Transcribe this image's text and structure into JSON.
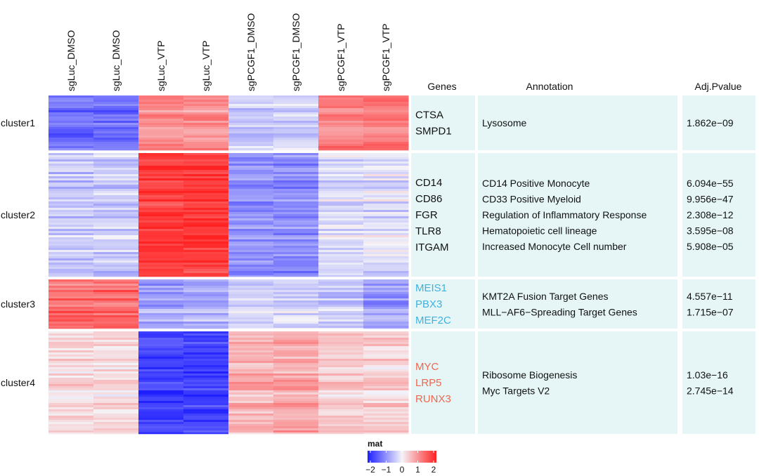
{
  "chart_data": {
    "type": "heatmap",
    "columns": [
      "sgLuc_DMSO",
      "sgLuc_DMSO",
      "sgLuc_VTP",
      "sgLuc_VTP",
      "sgPCGF1_DMSO",
      "sgPCGF1_DMSO",
      "sgPCGF1_VTP",
      "sgPCGF1_VTP"
    ],
    "headers": {
      "genes": "Genes",
      "annotation": "Annotation",
      "pvalue": "Adj.Pvalue"
    },
    "clusters": [
      {
        "name": "cluster1",
        "mean_z": [
          -1.3,
          -1.3,
          0.9,
          0.9,
          -0.45,
          -0.35,
          1.05,
          1.05
        ],
        "genes": [
          "CTSA",
          "SMPD1"
        ],
        "gene_color": "#111111",
        "annotations": [
          "Lysosome"
        ],
        "pvalues": [
          "1.862e−09"
        ]
      },
      {
        "name": "cluster2",
        "mean_z": [
          -0.4,
          -0.4,
          1.75,
          1.75,
          -0.95,
          -1.0,
          -0.25,
          -0.2
        ],
        "genes": [
          "CD14",
          "CD86",
          "FGR",
          "TLR8",
          "ITGAM"
        ],
        "gene_color": "#111111",
        "annotations": [
          "CD14 Positive Monocyte",
          "CD33 Positive Myeloid",
          "Regulation of Inflammatory Response",
          "Hematopoietic cell lineage",
          "Increased Monocyte Cell number"
        ],
        "pvalues": [
          "6.094e−55",
          "9.956e−47",
          "2.308e−12",
          "3.595e−08",
          "5.908e−05"
        ]
      },
      {
        "name": "cluster3",
        "mean_z": [
          1.3,
          1.35,
          -0.75,
          -0.65,
          -0.3,
          -0.25,
          -0.4,
          -0.8
        ],
        "genes": [
          "MEIS1",
          "PBX3",
          "MEF2C"
        ],
        "gene_color": "#3DB2E0",
        "annotations": [
          "KMT2A Fusion Target Genes",
          "MLL−AF6−Spreading Target Genes"
        ],
        "pvalues": [
          "4.557e−11",
          "1.715e−07"
        ]
      },
      {
        "name": "cluster4",
        "mean_z": [
          0.3,
          0.3,
          -1.65,
          -1.7,
          0.65,
          0.75,
          0.4,
          0.35
        ],
        "genes": [
          "MYC",
          "LRP5",
          "RUNX3"
        ],
        "gene_color": "#F0664F",
        "annotations": [
          "Ribosome Biogenesis",
          "Myc Targets V2"
        ],
        "pvalues": [
          "1.03e−16",
          "2.745e−14"
        ]
      }
    ],
    "legend": {
      "title": "mat",
      "ticks": [
        "−2",
        "−1",
        "0",
        "1",
        "2"
      ],
      "range": [
        -2,
        2
      ],
      "colors": {
        "low": "#1F1FFF",
        "mid": "#F4F4F8",
        "high": "#FF2222"
      }
    },
    "panel_bg": "#E6F6F6"
  }
}
